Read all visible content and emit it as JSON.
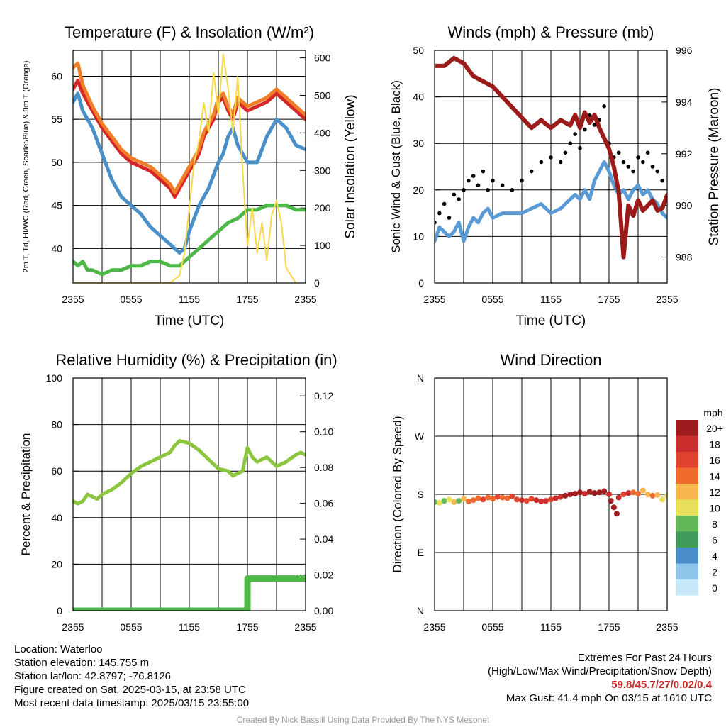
{
  "colors": {
    "temp": "#d62728",
    "dewpoint": "#4a90c8",
    "wind_chill": "#4db848",
    "temp9m": "#f07d28",
    "solar": "#f7d94c",
    "sonic_wind": "#5b9bd5",
    "gust": "#000000",
    "pressure": "#9b1b1b",
    "rh": "#8cc63f",
    "precip": "#4db848"
  },
  "chart_data": [
    {
      "id": "temperature",
      "type": "line",
      "title": "Temperature (F) & Insolation (W/m²)",
      "xlabel": "Time (UTC)",
      "ylabel": "2m T, Td, HI/WC (Red, Green, Scarlet/Blue) & 9m T (Orange)",
      "ylabel_right": "Solar Insolation (Yellow)",
      "x_ticks": [
        "2355",
        "0555",
        "1155",
        "1755",
        "2355"
      ],
      "xlim": [
        0,
        24
      ],
      "ylim": [
        36,
        63
      ],
      "y_ticks": [
        40,
        45,
        50,
        55,
        60
      ],
      "ylim_right": [
        0,
        620
      ],
      "y_ticks_right": [
        0,
        100,
        200,
        300,
        400,
        500,
        600
      ],
      "series": [
        {
          "name": "2m T",
          "axis": "left",
          "color": "#d62728",
          "x": [
            0,
            0.5,
            1,
            2,
            3,
            4,
            5,
            6,
            7,
            8,
            9,
            10,
            10.5,
            11,
            11.5,
            12,
            13,
            13.5,
            14,
            14.5,
            15,
            15.5,
            16,
            16.5,
            17,
            17.5,
            18,
            19,
            20,
            21,
            22,
            23,
            24
          ],
          "values": [
            58.5,
            59.5,
            58,
            56,
            54,
            52.5,
            51,
            50,
            49.5,
            49,
            48,
            47,
            46,
            47,
            48,
            49,
            51,
            53,
            54,
            55,
            57,
            57.5,
            56,
            55,
            57,
            56.5,
            56,
            56.5,
            57,
            58,
            57,
            56,
            55
          ]
        },
        {
          "name": "9m T",
          "axis": "left",
          "color": "#f07d28",
          "x": [
            0,
            0.5,
            1,
            2,
            3,
            4,
            5,
            6,
            7,
            8,
            9,
            10,
            10.5,
            11,
            11.5,
            12,
            13,
            13.5,
            14,
            14.5,
            15,
            15.5,
            16,
            16.5,
            17,
            17.5,
            18,
            19,
            20,
            21,
            22,
            23,
            24
          ],
          "values": [
            61,
            61.5,
            59,
            56.5,
            54.5,
            53,
            51.5,
            50.5,
            50,
            49.5,
            48.5,
            47.5,
            46.5,
            47.5,
            48.5,
            49.5,
            51.5,
            53.5,
            54.5,
            55.5,
            57.5,
            58,
            56.5,
            55.5,
            57.5,
            57,
            56.5,
            57,
            57.5,
            58.5,
            57.5,
            56.5,
            55.5
          ]
        },
        {
          "name": "Td",
          "axis": "left",
          "color": "#4a90c8",
          "x": [
            0,
            0.5,
            1,
            1.5,
            2,
            3,
            4,
            5,
            6,
            7,
            8,
            9,
            10,
            11,
            11.5,
            12,
            13,
            14,
            15,
            15.5,
            16,
            16.5,
            17,
            17.5,
            18,
            19,
            20,
            21,
            22,
            23,
            24
          ],
          "values": [
            57,
            58,
            56,
            55,
            54,
            51,
            48,
            46,
            45,
            44,
            42.5,
            41.5,
            40.5,
            39.5,
            40,
            42,
            45,
            47,
            50,
            51,
            53,
            54,
            52,
            51,
            50,
            50,
            53,
            55,
            54,
            52,
            51.5
          ]
        },
        {
          "name": "HI/WC",
          "axis": "left",
          "color": "#4db848",
          "x": [
            0,
            0.5,
            1,
            1.5,
            2,
            3,
            4,
            5,
            6,
            7,
            8,
            9,
            10,
            11,
            11.5,
            12,
            13,
            14,
            15,
            16,
            17,
            17.5,
            18,
            19,
            20,
            21,
            22,
            23,
            24
          ],
          "values": [
            38.5,
            38,
            38.5,
            37.5,
            37.5,
            37,
            37.5,
            37.5,
            38,
            38,
            38.5,
            38.5,
            38,
            38,
            38.5,
            39,
            40,
            41,
            42,
            43,
            43.5,
            44,
            44.5,
            44.5,
            45,
            45,
            45,
            44.5,
            44.5
          ]
        },
        {
          "name": "Solar",
          "axis": "right",
          "color": "#f7d94c",
          "x": [
            0,
            10,
            11,
            11.5,
            12,
            12.5,
            13,
            13.5,
            14,
            14.5,
            15,
            15.5,
            16,
            16.5,
            17,
            17.5,
            18,
            18.5,
            19,
            19.5,
            20,
            20.5,
            21,
            21.5,
            22,
            23
          ],
          "values": [
            0,
            0,
            20,
            80,
            200,
            320,
            380,
            480,
            400,
            560,
            450,
            610,
            520,
            400,
            550,
            300,
            100,
            200,
            80,
            160,
            60,
            180,
            220,
            160,
            40,
            0
          ]
        }
      ]
    },
    {
      "id": "winds",
      "type": "line",
      "title": "Winds (mph) & Pressure (mb)",
      "xlabel": "Time (UTC)",
      "ylabel": "Sonic Wind & Gust (Blue, Black)",
      "ylabel_right": "Station Pressure (Maroon)",
      "x_ticks": [
        "2355",
        "0555",
        "1155",
        "1755",
        "2355"
      ],
      "xlim": [
        0,
        24
      ],
      "ylim": [
        0,
        50
      ],
      "y_ticks": [
        0,
        10,
        20,
        30,
        40,
        50
      ],
      "ylim_right": [
        987,
        996
      ],
      "y_ticks_right": [
        988,
        990,
        992,
        994,
        996
      ],
      "series": [
        {
          "name": "Sonic Wind",
          "axis": "left",
          "color": "#5b9bd5",
          "x": [
            0,
            0.5,
            1,
            1.5,
            2,
            2.5,
            3,
            3.5,
            4,
            4.5,
            5,
            5.5,
            6,
            7,
            8,
            9,
            10,
            11,
            12,
            13,
            13.5,
            14,
            14.5,
            15,
            15.5,
            16,
            16.5,
            17,
            17.5,
            18,
            18.5,
            19,
            19.5,
            20,
            20.5,
            21,
            21.5,
            22,
            22.5,
            23,
            23.5,
            24
          ],
          "values": [
            9,
            12,
            11,
            10,
            11,
            13,
            9,
            12,
            14,
            13,
            15,
            16,
            14,
            15,
            15,
            15,
            16,
            17,
            15,
            16,
            17,
            18,
            19,
            18,
            20,
            18,
            22,
            24,
            26,
            24,
            21,
            19,
            20,
            18,
            20,
            21,
            19,
            20,
            18,
            17,
            15,
            14
          ]
        },
        {
          "name": "Gust",
          "axis": "left",
          "color": "#000000",
          "x": [
            0,
            0.5,
            1,
            1.5,
            2,
            2.5,
            3,
            3.5,
            4,
            4.5,
            5,
            5.5,
            6,
            7,
            8,
            9,
            10,
            11,
            12,
            13,
            13.5,
            14,
            14.5,
            15,
            15.5,
            16,
            16.5,
            17,
            17.5,
            18,
            18.5,
            19,
            19.5,
            20,
            20.5,
            21,
            21.5,
            22,
            22.5,
            23,
            23.5,
            24
          ],
          "values": [
            13,
            15,
            17,
            14,
            19,
            18,
            20,
            22,
            23,
            21,
            24,
            20,
            22,
            21,
            20,
            22,
            24,
            26,
            27,
            26,
            28,
            30,
            32,
            29,
            33,
            36,
            34,
            35,
            38,
            30,
            27,
            28,
            26,
            25,
            24,
            27,
            26,
            28,
            25,
            24,
            22,
            18
          ]
        },
        {
          "name": "Pressure",
          "axis": "right",
          "color": "#9b1b1b",
          "x": [
            0,
            1,
            2,
            3,
            4,
            5,
            6,
            7,
            8,
            9,
            10,
            11,
            12,
            13,
            14,
            14.5,
            15,
            15.5,
            16,
            16.5,
            17,
            17.5,
            18,
            18.5,
            19,
            19.5,
            20,
            20.5,
            21,
            21.5,
            22,
            22.5,
            23,
            23.5,
            24
          ],
          "values": [
            995.4,
            995.4,
            995.7,
            995.5,
            995.0,
            994.8,
            994.6,
            994.2,
            993.8,
            993.4,
            993.0,
            993.3,
            993.0,
            993.3,
            993.1,
            993.5,
            993.0,
            993.6,
            993.2,
            993.5,
            993.0,
            992.6,
            992.2,
            991.5,
            990.5,
            988.0,
            990.0,
            989.6,
            990.2,
            989.8,
            990.0,
            990.2,
            989.8,
            989.9,
            990.4
          ]
        }
      ]
    },
    {
      "id": "humidity",
      "type": "line",
      "title": "Relative Humidity (%) & Precipitation (in)",
      "xlabel": "",
      "ylabel": "Percent & Precipitation",
      "x_ticks": [
        "2355",
        "0555",
        "1155",
        "1755",
        "2355"
      ],
      "xlim": [
        0,
        24
      ],
      "ylim": [
        0,
        100
      ],
      "y_ticks": [
        0,
        20,
        40,
        60,
        80,
        100
      ],
      "ylim_right": [
        0,
        0.13
      ],
      "y_ticks_right": [
        "0.00",
        "0.02",
        "0.04",
        "0.06",
        "0.08",
        "0.10",
        "0.12"
      ],
      "series": [
        {
          "name": "RH",
          "axis": "left",
          "color": "#8cc63f",
          "x": [
            0,
            0.5,
            1,
            1.5,
            2,
            2.5,
            3,
            4,
            5,
            6,
            7,
            8,
            9,
            10,
            10.5,
            11,
            12,
            13,
            14,
            15,
            16,
            16.5,
            17,
            17.5,
            18,
            18.5,
            19,
            20,
            21,
            22,
            23,
            23.5,
            24
          ],
          "values": [
            47,
            46,
            47,
            50,
            49,
            48,
            50,
            52,
            55,
            59,
            62,
            64,
            66,
            68,
            71,
            73,
            72,
            69,
            65,
            61,
            60,
            58,
            59,
            60,
            70,
            66,
            64,
            66,
            62,
            64,
            67,
            68,
            67
          ]
        },
        {
          "name": "Precipitation",
          "axis": "right",
          "color": "#4db848",
          "x": [
            0,
            18,
            18.01,
            24
          ],
          "values": [
            0.0,
            0.0,
            0.018,
            0.018
          ]
        }
      ]
    },
    {
      "id": "direction",
      "type": "scatter",
      "title": "Wind Direction",
      "ylabel": "Direction (Colored By Speed)",
      "x_ticks": [
        "2355",
        "0555",
        "1155",
        "1755",
        "2355"
      ],
      "xlim": [
        0,
        24
      ],
      "y_ticks": [
        "N",
        "E",
        "S",
        "W",
        "N"
      ],
      "ylim": [
        0,
        360
      ],
      "colorbar": {
        "title": "mph",
        "labels": [
          "0",
          "2",
          "4",
          "6",
          "8",
          "10",
          "12",
          "14",
          "16",
          "18",
          "20+"
        ],
        "colors": [
          "#c6e8f8",
          "#8ec5ea",
          "#4a8cc7",
          "#3f9a5c",
          "#62b858",
          "#e8e05a",
          "#f6b54d",
          "#ee6b2d",
          "#e0422e",
          "#c92d2e",
          "#9e1b1e"
        ]
      },
      "series": [
        {
          "name": "Direction",
          "x": [
            0,
            0.5,
            1,
            1.5,
            2,
            2.5,
            3,
            3.5,
            4,
            4.5,
            5,
            5.5,
            6,
            6.5,
            7,
            7.5,
            8,
            8.5,
            9,
            9.5,
            10,
            10.5,
            11,
            11.5,
            12,
            12.5,
            13,
            13.5,
            14,
            14.5,
            15,
            15.5,
            16,
            16.5,
            17,
            17.5,
            18,
            18.2,
            18.5,
            18.8,
            19,
            19.5,
            20,
            20.5,
            21,
            21.5,
            22,
            22.5,
            23,
            23.5,
            24
          ],
          "values": [
            168,
            167,
            170,
            172,
            168,
            170,
            173,
            169,
            171,
            174,
            172,
            175,
            173,
            176,
            175,
            174,
            177,
            172,
            171,
            170,
            173,
            171,
            169,
            170,
            172,
            174,
            176,
            178,
            180,
            181,
            183,
            181,
            184,
            182,
            183,
            185,
            180,
            170,
            160,
            150,
            175,
            180,
            182,
            183,
            181,
            186,
            180,
            178,
            179,
            172,
            178
          ],
          "speeds": [
            9,
            10,
            8,
            11,
            12,
            9,
            13,
            14,
            15,
            14,
            16,
            15,
            14,
            16,
            15,
            14,
            16,
            17,
            18,
            17,
            16,
            18,
            19,
            18,
            17,
            18,
            19,
            20,
            20,
            21,
            20,
            19,
            20,
            21,
            20,
            21,
            18,
            20,
            22,
            21,
            18,
            16,
            19,
            15,
            14,
            13,
            12,
            14,
            13,
            11,
            10
          ]
        }
      ]
    }
  ],
  "info": {
    "location": "Location: Waterloo",
    "elevation": "Station elevation: 145.755 m",
    "latlon": "Station lat/lon: 42.8797; -76.8126",
    "created": "Figure created on Sat, 2025-03-15, at 23:58 UTC",
    "recent": "Most recent data timestamp: 2025/03/15 23:55:00"
  },
  "extremes": {
    "title": "Extremes For Past 24 Hours",
    "subtitle": "(High/Low/Max Wind/Precipitation/Snow Depth)",
    "values": "59.8/45.7/27/0.02/0.4",
    "max_gust": "Max Gust: 41.4 mph On 03/15 at 1610 UTC"
  },
  "credit": "Created By Nick Bassill Using Data Provided By The NYS Mesonet"
}
